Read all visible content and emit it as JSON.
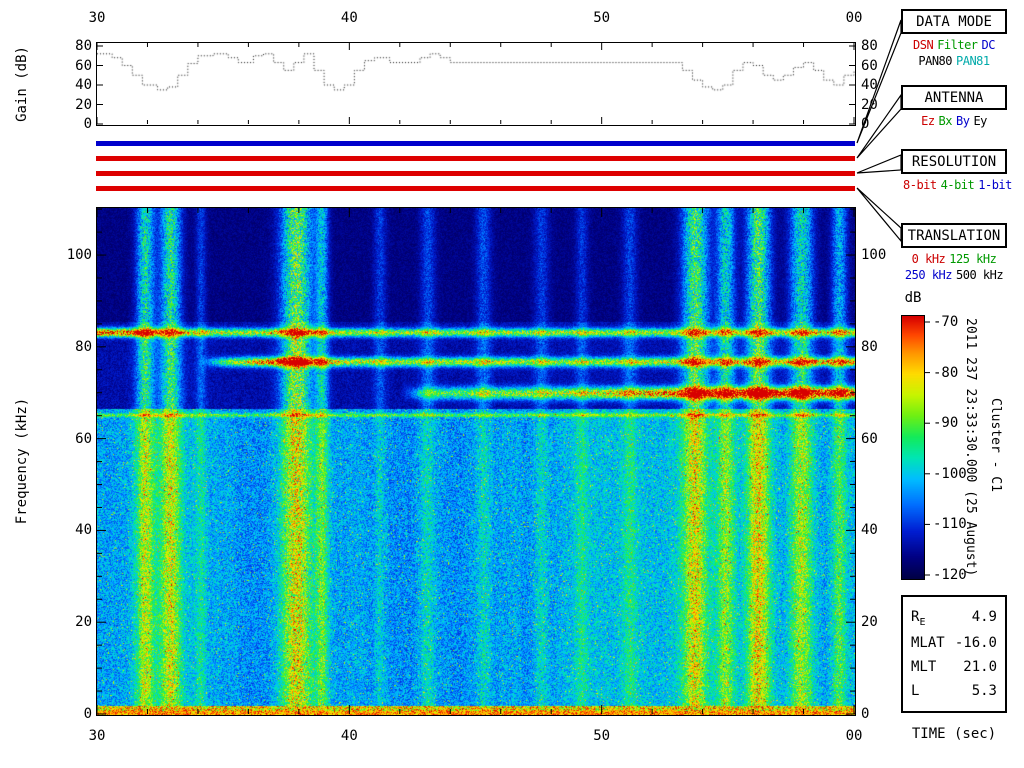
{
  "labels": {
    "timestamp": "2011 237 23:33:30.000 (25 August)",
    "spacecraft": "Cluster - C1"
  },
  "chart_data": [
    {
      "type": "line",
      "name": "gain-agc-trace",
      "ylabel": "Gain (dB)",
      "xlim": [
        30,
        60
      ],
      "ylim": [
        0,
        84
      ],
      "y_ticks": [
        0,
        20,
        40,
        60,
        80
      ],
      "step": "post",
      "line_style": "dotted",
      "x": [
        30,
        30.6,
        31,
        31.4,
        31.8,
        32.4,
        32.8,
        33.2,
        33.6,
        34,
        34.6,
        35.2,
        35.6,
        36.2,
        36.6,
        37,
        37.4,
        37.8,
        38.2,
        38.6,
        39,
        39.4,
        39.8,
        40.2,
        40.6,
        41,
        41.6,
        42.4,
        42.8,
        43.2,
        43.6,
        44,
        45,
        46,
        48,
        50,
        52,
        52.8,
        53.2,
        53.6,
        54,
        54.4,
        54.8,
        55.2,
        55.6,
        56,
        56.4,
        56.8,
        57.2,
        57.6,
        58,
        58.4,
        58.8,
        59.2,
        59.6,
        60
      ],
      "y": [
        72,
        68,
        60,
        50,
        40,
        35,
        38,
        50,
        62,
        70,
        72,
        68,
        63,
        70,
        72,
        63,
        55,
        63,
        72,
        55,
        40,
        35,
        40,
        55,
        65,
        68,
        63,
        63,
        68,
        72,
        68,
        63,
        63,
        63,
        63,
        63,
        63,
        63,
        55,
        45,
        38,
        35,
        40,
        55,
        63,
        60,
        50,
        45,
        50,
        58,
        63,
        55,
        45,
        40,
        50,
        55
      ]
    },
    {
      "type": "heatmap",
      "name": "wbd-spectrogram",
      "title": "Cluster C1 WBD wideband spectrogram",
      "xlabel": "TIME (sec)",
      "ylabel": "Frequency (kHz)",
      "xlim": [
        30,
        60
      ],
      "ylim": [
        0,
        110.25
      ],
      "x_ticks": {
        "values": [
          30,
          40,
          50,
          60
        ],
        "labels": [
          "30",
          "40",
          "50",
          "00"
        ],
        "minor_step": 2
      },
      "y_ticks": {
        "values": [
          0,
          20,
          40,
          60,
          80,
          100
        ],
        "minor_step": 5
      },
      "colorbar": {
        "label": "dB",
        "min": -120,
        "max": -70,
        "ticks": [
          "-70",
          "-80",
          "-90",
          "-100",
          "-110",
          "-120"
        ]
      },
      "features": {
        "background": {
          "quiet_above_khz": 85.5,
          "mid_above_khz": 66.5
        },
        "horizontal_bands": [
          {
            "freq_khz": 83.2,
            "half_width_khz": 0.9,
            "profile": [
              [
                30,
                0.95
              ],
              [
                31.5,
                1.0
              ],
              [
                33,
                0.75
              ],
              [
                35,
                0.62
              ],
              [
                37,
                0.7
              ],
              [
                38.5,
                0.72
              ],
              [
                40,
                0.62
              ],
              [
                43,
                0.6
              ],
              [
                46,
                0.62
              ],
              [
                50,
                0.6
              ],
              [
                54,
                0.63
              ],
              [
                57,
                0.66
              ],
              [
                60,
                0.7
              ]
            ]
          },
          {
            "freq_khz": 76.8,
            "half_width_khz": 1.0,
            "profile": [
              [
                30,
                0
              ],
              [
                34,
                0
              ],
              [
                35,
                0.5
              ],
              [
                36.5,
                0.85
              ],
              [
                37.4,
                1.05
              ],
              [
                38.5,
                0.9
              ],
              [
                40,
                0.66
              ],
              [
                43,
                0.6
              ],
              [
                46,
                0.62
              ],
              [
                49,
                0.6
              ],
              [
                52,
                0.64
              ],
              [
                55,
                0.7
              ],
              [
                58,
                0.74
              ],
              [
                60,
                0.76
              ]
            ]
          },
          {
            "freq_khz": 70.0,
            "half_width_khz": 1.3,
            "profile": [
              [
                30,
                0
              ],
              [
                42,
                0
              ],
              [
                43.2,
                0.5
              ],
              [
                45,
                0.55
              ],
              [
                47,
                0.6
              ],
              [
                49,
                0.65
              ],
              [
                51,
                0.75
              ],
              [
                52.5,
                0.9
              ],
              [
                54,
                1.0
              ],
              [
                55.5,
                1.05
              ],
              [
                57,
                1.05
              ],
              [
                58.5,
                1.05
              ],
              [
                60,
                1.0
              ]
            ]
          },
          {
            "freq_khz": 65.2,
            "half_width_khz": 0.4,
            "profile": [
              [
                30,
                0.3
              ],
              [
                60,
                0.3
              ]
            ]
          }
        ],
        "vertical_bursts": [
          {
            "t": 31.9,
            "half_width": 0.35,
            "amp": 0.42
          },
          {
            "t": 32.9,
            "half_width": 0.4,
            "amp": 0.45
          },
          {
            "t": 34.1,
            "half_width": 0.2,
            "amp": 0.15
          },
          {
            "t": 37.9,
            "half_width": 0.6,
            "amp": 0.55
          },
          {
            "t": 38.9,
            "half_width": 0.25,
            "amp": 0.32
          },
          {
            "t": 41.2,
            "half_width": 0.25,
            "amp": 0.14
          },
          {
            "t": 43.1,
            "half_width": 0.3,
            "amp": 0.16
          },
          {
            "t": 45.3,
            "half_width": 0.3,
            "amp": 0.17
          },
          {
            "t": 47.6,
            "half_width": 0.3,
            "amp": 0.14
          },
          {
            "t": 49.2,
            "half_width": 0.25,
            "amp": 0.13
          },
          {
            "t": 51.1,
            "half_width": 0.3,
            "amp": 0.15
          },
          {
            "t": 53.7,
            "half_width": 0.5,
            "amp": 0.5
          },
          {
            "t": 54.9,
            "half_width": 0.35,
            "amp": 0.38
          },
          {
            "t": 56.2,
            "half_width": 0.45,
            "amp": 0.5
          },
          {
            "t": 57.9,
            "half_width": 0.45,
            "amp": 0.4
          },
          {
            "t": 59.4,
            "half_width": 0.3,
            "amp": 0.3
          }
        ],
        "bottom_edge_band": {
          "max_khz": 1.8,
          "intensity": 0.75
        }
      }
    }
  ],
  "mode_bars": [
    {
      "name": "data-mode",
      "color": "#0000cc"
    },
    {
      "name": "antenna",
      "color": "#dd0000"
    },
    {
      "name": "resolution",
      "color": "#dd0000"
    },
    {
      "name": "translation",
      "color": "#dd0000"
    }
  ],
  "panels": [
    {
      "title": "DATA MODE",
      "rows": [
        [
          {
            "text": "DSN",
            "color": "#cc0000"
          },
          {
            "text": "Filter",
            "color": "#009900"
          },
          {
            "text": "DC",
            "color": "#0000cc"
          }
        ],
        [
          {
            "text": "PAN80",
            "color": "#000000"
          },
          {
            "text": "PAN81",
            "color": "#00aaaa"
          }
        ]
      ]
    },
    {
      "title": "ANTENNA",
      "rows": [
        [
          {
            "text": "Ez",
            "color": "#cc0000"
          },
          {
            "text": "Bx",
            "color": "#009900"
          },
          {
            "text": "By",
            "color": "#0000cc"
          },
          {
            "text": "Ey",
            "color": "#000000"
          }
        ]
      ]
    },
    {
      "title": "RESOLUTION",
      "rows": [
        [
          {
            "text": "8-bit",
            "color": "#cc0000"
          },
          {
            "text": "4-bit",
            "color": "#009900"
          },
          {
            "text": "1-bit",
            "color": "#0000cc"
          }
        ]
      ]
    },
    {
      "title": "TRANSLATION",
      "rows": [
        [
          {
            "text": "0 kHz",
            "color": "#cc0000"
          },
          {
            "text": "125 kHz",
            "color": "#009900"
          }
        ],
        [
          {
            "text": "250 kHz",
            "color": "#0000cc"
          },
          {
            "text": "500 kHz",
            "color": "#000000"
          }
        ]
      ]
    }
  ],
  "stats": {
    "rows": [
      {
        "label": "R",
        "label_sub": "E",
        "value": "4.9"
      },
      {
        "label": "MLAT",
        "value": "-16.0"
      },
      {
        "label": "MLT",
        "value": "21.0"
      },
      {
        "label": "L",
        "value": "5.3"
      }
    ]
  }
}
